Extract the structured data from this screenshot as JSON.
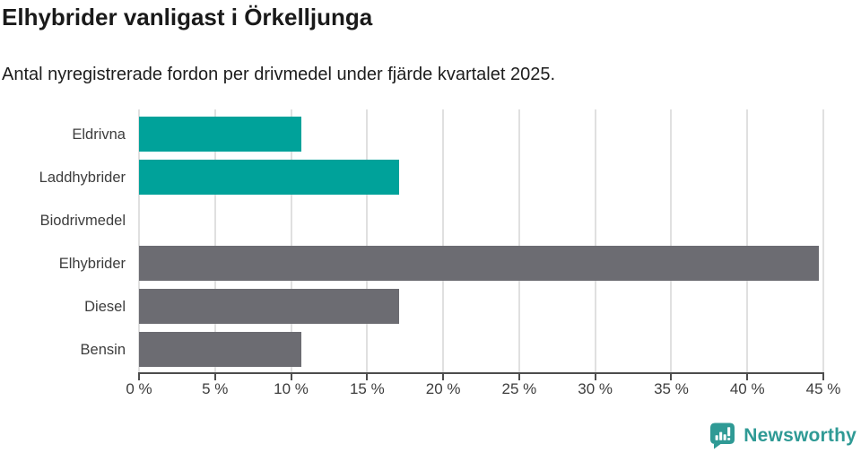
{
  "chart_data": {
    "type": "bar",
    "orientation": "horizontal",
    "title": "Elhybrider vanligast i Örkelljunga",
    "subtitle": "Antal nyregistrerade fordon per drivmedel under fjärde kvartalet 2025.",
    "categories": [
      "Eldrivna",
      "Laddhybrider",
      "Biodrivmedel",
      "Elhybrider",
      "Diesel",
      "Bensin"
    ],
    "values": [
      10.7,
      17.1,
      0,
      44.7,
      17.1,
      10.7
    ],
    "unit": "%",
    "xlabel": "",
    "ylabel": "",
    "xlim": [
      0,
      45
    ],
    "xticks": [
      0,
      5,
      10,
      15,
      20,
      25,
      30,
      35,
      40,
      45
    ],
    "tick_labels": [
      "0 %",
      "5 %",
      "10 %",
      "15 %",
      "20 %",
      "25 %",
      "30 %",
      "35 %",
      "40 %",
      "45 %"
    ],
    "bar_colors": [
      "#00a29a",
      "#00a29a",
      "#6c6c72",
      "#6c6c72",
      "#6c6c72",
      "#6c6c72"
    ],
    "grid": true,
    "legend_position": "none"
  },
  "colors": {
    "accent_teal": "#00a29a",
    "neutral_gray": "#6c6c72",
    "gridline": "#e0e0e0",
    "axis": "#4d4d4d",
    "text": "#3d3d3d",
    "brand_teal": "#2f9a95"
  },
  "branding": {
    "name": "Newsworthy",
    "icon": "newsworthy-speech-bubble-barchart-icon"
  }
}
